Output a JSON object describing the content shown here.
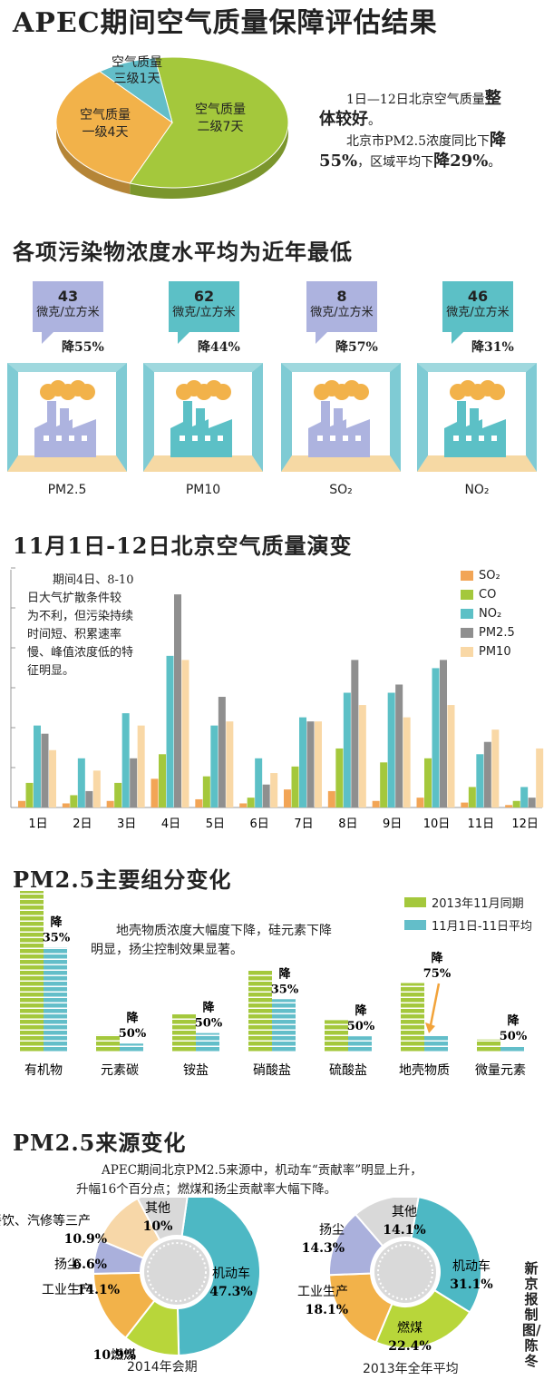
{
  "title": "APEC期间空气质量保障评估结果",
  "pie": {
    "slices": [
      {
        "label1": "空气质量",
        "label2": "二级7天",
        "value": 7,
        "color": "#a4c83c"
      },
      {
        "label1": "空气质量",
        "label2": "一级4天",
        "value": 4,
        "color": "#f2b24a"
      },
      {
        "label1": "空气质量",
        "label2": "三级1天",
        "value": 1,
        "color": "#63bec9"
      }
    ]
  },
  "summary": {
    "l1a": "1日—12日北京空气质量",
    "l1b": "整",
    "l2a": "体较好",
    "l2b": "。",
    "l3a": "北京市PM2.5浓度同比下",
    "l3b": "降",
    "l4a": "55%",
    "l4b": "，区域平均下",
    "l4c": "降29%",
    "l4d": "。"
  },
  "section2": {
    "title": "各项污染物浓度水平均为近年最低",
    "items": [
      {
        "value": "43",
        "unit": "微克/立方米",
        "drop": "降55%",
        "name": "PM2.5",
        "color": "#adb3df",
        "factory": "#adb3df"
      },
      {
        "value": "62",
        "unit": "微克/立方米",
        "drop": "降44%",
        "name": "PM10",
        "color": "#5cc0c6",
        "factory": "#5cc0c6"
      },
      {
        "value": "8",
        "unit": "微克/立方米",
        "drop": "降57%",
        "name": "SO₂",
        "color": "#adb3df",
        "factory": "#adb3df"
      },
      {
        "value": "46",
        "unit": "微克/立方米",
        "drop": "降31%",
        "name": "NO₂",
        "color": "#5cc0c6",
        "factory": "#5cc0c6"
      }
    ]
  },
  "section3": {
    "title": "11月1日-12日北京空气质量演变",
    "note": [
      "期间4日、8-10",
      "日大气扩散条件较",
      "为不利，但污染持续",
      "时间短、积累速率",
      "慢、峰值浓度低的特",
      "征明显。"
    ]
  },
  "section4": {
    "title": "PM2.5主要组分变化",
    "note1": "地壳物质浓度大幅度下降，硅元素下降",
    "note2": "明显，扬尘控制效果显著。",
    "legend": [
      "2013年11月同期",
      "11月1日-11日平均"
    ]
  },
  "section5": {
    "title": "PM2.5来源变化",
    "note1": "APEC期间北京PM2.5来源中，机动车“贡献率”明显上升，",
    "note2": "升幅16个百分点；燃煤和扬尘贡献率大幅下降。",
    "donut1_caption": "2014年会期",
    "donut2_caption": "2013年全年平均"
  },
  "credit": "新京报制图/陈冬",
  "chart_data": [
    {
      "type": "pie",
      "title": "APEC期间空气质量保障评估结果",
      "categories": [
        "空气质量二级",
        "空气质量一级",
        "空气质量三级"
      ],
      "values": [
        7,
        4,
        1
      ],
      "colors": [
        "#a4c83c",
        "#f2b24a",
        "#63bec9"
      ]
    },
    {
      "type": "bar",
      "title": "11月1日-12日北京空气质量演变",
      "categories": [
        "1日",
        "2日",
        "3日",
        "4日",
        "5日",
        "6日",
        "7日",
        "8日",
        "9日",
        "10日",
        "11日",
        "12日"
      ],
      "ylim": [
        0,
        290
      ],
      "grid": false,
      "legend": "top-right",
      "series": [
        {
          "name": "SO₂",
          "color": "#f2a556",
          "values": [
            8,
            5,
            8,
            35,
            10,
            5,
            22,
            20,
            8,
            12,
            6,
            3
          ]
        },
        {
          "name": "CO",
          "color": "#a4c83c",
          "values": [
            30,
            15,
            30,
            65,
            38,
            12,
            50,
            72,
            55,
            60,
            25,
            8
          ]
        },
        {
          "name": "NO₂",
          "color": "#5cc0c6",
          "values": [
            100,
            60,
            115,
            185,
            100,
            60,
            110,
            140,
            140,
            170,
            65,
            25
          ]
        },
        {
          "name": "PM2.5",
          "color": "#8f8f8f",
          "values": [
            90,
            20,
            60,
            260,
            135,
            28,
            105,
            180,
            150,
            180,
            80,
            12
          ]
        },
        {
          "name": "PM10",
          "color": "#f9d8a6",
          "values": [
            70,
            45,
            100,
            180,
            105,
            42,
            105,
            125,
            110,
            125,
            95,
            72
          ]
        }
      ]
    },
    {
      "type": "bar",
      "title": "PM2.5主要组分变化",
      "categories": [
        "有机物",
        "元素碳",
        "铵盐",
        "硝酸盐",
        "硫酸盐",
        "地壳物质",
        "微量元素"
      ],
      "series": [
        {
          "name": "2013年11月同期",
          "color": "#a4c83c",
          "values": [
            100,
            11,
            24,
            51,
            20,
            43,
            8
          ]
        },
        {
          "name": "11月1日-11日平均",
          "color": "#63bec9",
          "values": [
            65,
            5.5,
            12,
            33,
            10,
            10.75,
            4
          ]
        }
      ],
      "annotations": [
        "降35%",
        "降50%",
        "降50%",
        "降35%",
        "降50%",
        "降75%",
        "降50%"
      ]
    },
    {
      "type": "pie",
      "title": "2014年会期",
      "categories": [
        "机动车",
        "燃煤",
        "工业生产",
        "扬尘",
        "餐饮、汽修等三产",
        "其他"
      ],
      "values": [
        47.3,
        10.9,
        14.1,
        6.6,
        10.9,
        10
      ],
      "colors": [
        "#4db8c4",
        "#b8d63a",
        "#f2b24a",
        "#aab0dc",
        "#f7d7a8",
        "#d9d9d9"
      ]
    },
    {
      "type": "pie",
      "title": "2013年全年平均",
      "categories": [
        "机动车",
        "燃煤",
        "工业生产",
        "扬尘",
        "其他"
      ],
      "values": [
        31.1,
        22.4,
        18.1,
        14.3,
        14.1
      ],
      "colors": [
        "#4db8c4",
        "#b8d63a",
        "#f2b24a",
        "#aab0dc",
        "#d9d9d9"
      ]
    }
  ]
}
